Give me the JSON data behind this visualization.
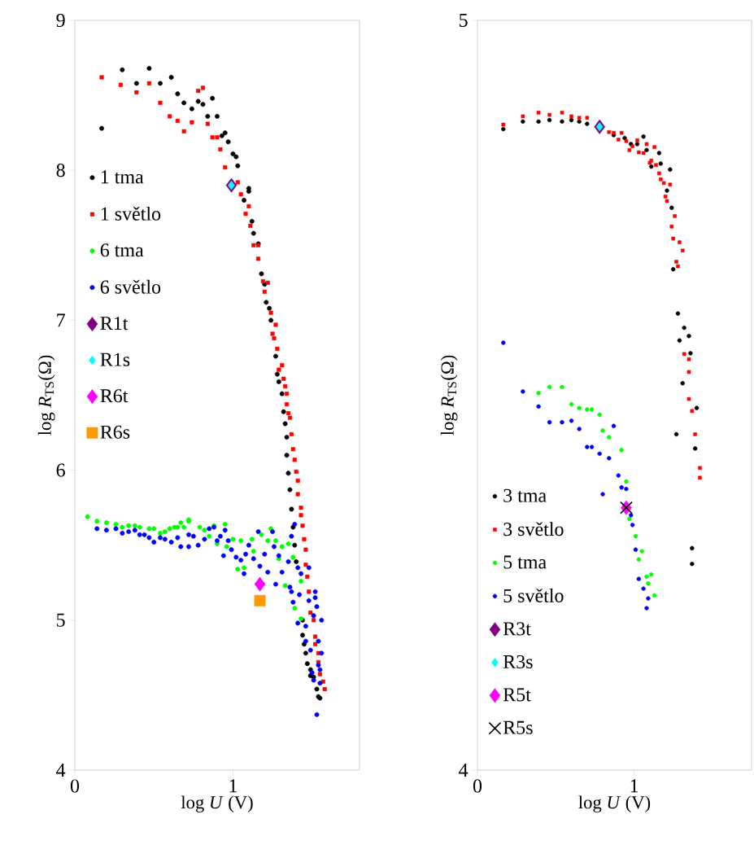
{
  "chart_data": [
    {
      "type": "scatter",
      "xlabel": "log *U* (V)",
      "ylabel": "log *R*$_{TS}$(Ω)",
      "xlim": [
        0,
        1.8
      ],
      "ylim": [
        4,
        9
      ],
      "xticks": [
        0,
        1
      ],
      "yticks": [
        4,
        5,
        6,
        7,
        8,
        9
      ],
      "grid": false,
      "legend": "left",
      "series": [
        {
          "name": "1 tma",
          "color": "#000000",
          "marker": "circle",
          "x": [
            0.17,
            0.3,
            0.39,
            0.47,
            0.54,
            0.61,
            0.65,
            0.69,
            0.74,
            0.78,
            0.81,
            0.87,
            0.84,
            0.9,
            0.93,
            0.95,
            0.97,
            1.0,
            1.02,
            1.03,
            1.1,
            1.1,
            1.07,
            1.12,
            1.13,
            1.16,
            1.18,
            1.2,
            1.21,
            1.23,
            1.24,
            1.27,
            1.28,
            1.29,
            1.31,
            1.32,
            1.33,
            1.34,
            1.34,
            1.35,
            1.36,
            1.37,
            1.38,
            1.39,
            1.4,
            1.44,
            1.44,
            1.45,
            1.46,
            1.47,
            1.49,
            1.49,
            1.51,
            1.53,
            1.54,
            1.55
          ],
          "values": [
            8.28,
            8.67,
            8.58,
            8.68,
            8.58,
            8.62,
            8.51,
            8.45,
            8.41,
            8.46,
            8.44,
            8.48,
            8.36,
            8.36,
            8.23,
            8.25,
            8.19,
            8.11,
            8.09,
            8.03,
            7.88,
            7.86,
            7.8,
            7.66,
            7.58,
            7.51,
            7.31,
            7.24,
            7.12,
            7.08,
            7.0,
            6.76,
            6.64,
            6.59,
            6.51,
            6.39,
            6.31,
            6.22,
            6.1,
            5.98,
            5.87,
            5.74,
            5.62,
            5.5,
            5.39,
            5.0,
            4.9,
            4.84,
            4.78,
            4.71,
            4.67,
            4.63,
            4.62,
            4.54,
            4.49,
            4.48
          ]
        },
        {
          "name": "1 světlo",
          "color": "#ff0000",
          "marker": "square",
          "x": [
            0.17,
            0.29,
            0.39,
            0.47,
            0.54,
            0.6,
            0.65,
            0.69,
            0.74,
            0.78,
            0.81,
            0.84,
            0.87,
            0.9,
            0.92,
            0.95,
            1.03,
            1.05,
            1.1,
            1.08,
            1.11,
            1.13,
            1.16,
            1.16,
            1.19,
            1.22,
            1.2,
            1.24,
            1.27,
            1.25,
            1.26,
            1.28,
            1.31,
            1.29,
            1.32,
            1.33,
            1.34,
            1.34,
            1.35,
            1.36,
            1.37,
            1.38,
            1.39,
            1.4,
            1.41,
            1.41,
            1.43,
            1.43,
            1.44,
            1.45,
            1.46,
            1.46,
            1.47,
            1.48,
            1.49,
            1.51,
            1.52,
            1.52,
            1.54,
            1.54,
            1.55,
            1.57,
            1.58
          ],
          "values": [
            8.62,
            8.57,
            8.52,
            8.58,
            8.45,
            8.36,
            8.33,
            8.26,
            8.32,
            8.53,
            8.55,
            8.31,
            8.22,
            8.22,
            8.14,
            8.02,
            7.92,
            7.84,
            7.76,
            7.71,
            7.63,
            7.5,
            7.5,
            7.41,
            7.26,
            7.25,
            7.19,
            7.05,
            6.97,
            6.91,
            6.88,
            6.81,
            6.7,
            6.67,
            6.61,
            6.56,
            6.51,
            6.44,
            6.38,
            6.35,
            6.24,
            6.14,
            6.07,
            5.99,
            5.93,
            5.84,
            5.75,
            5.7,
            5.63,
            5.54,
            5.47,
            5.37,
            5.29,
            5.19,
            5.05,
            5.0,
            4.89,
            4.84,
            4.78,
            4.72,
            4.64,
            4.59,
            4.54
          ]
        },
        {
          "name": "6 tma",
          "color": "#00ff00",
          "marker": "circle",
          "x": [
            0.08,
            0.14,
            0.2,
            0.26,
            0.3,
            0.34,
            0.38,
            0.41,
            0.47,
            0.5,
            0.54,
            0.57,
            0.6,
            0.63,
            0.65,
            0.67,
            0.69,
            0.72,
            0.72,
            0.79,
            0.82,
            0.88,
            0.85,
            0.9,
            0.95,
            0.96,
            1.0,
            1.05,
            1.03,
            1.07,
            1.12,
            1.13,
            1.18,
            1.24,
            1.22,
            1.27,
            1.31,
            1.29,
            1.33,
            1.35,
            1.38,
            1.43,
            1.39,
            1.43
          ],
          "values": [
            5.69,
            5.66,
            5.65,
            5.64,
            5.62,
            5.63,
            5.63,
            5.62,
            5.61,
            5.61,
            5.58,
            5.59,
            5.61,
            5.62,
            5.62,
            5.65,
            5.62,
            5.67,
            5.66,
            5.62,
            5.6,
            5.63,
            5.56,
            5.51,
            5.64,
            5.49,
            5.54,
            5.53,
            5.34,
            5.35,
            5.54,
            5.46,
            5.57,
            5.61,
            5.53,
            5.53,
            5.49,
            5.41,
            5.23,
            5.51,
            5.42,
            5.26,
            5.08,
            5.01
          ]
        },
        {
          "name": "6 světlo",
          "color": "#0000ff",
          "marker": "circle",
          "x": [
            0.14,
            0.2,
            0.26,
            0.3,
            0.34,
            0.38,
            0.41,
            0.44,
            0.47,
            0.5,
            0.54,
            0.57,
            0.61,
            0.65,
            0.67,
            0.72,
            0.72,
            0.75,
            0.78,
            0.82,
            0.85,
            0.88,
            0.9,
            0.92,
            0.94,
            0.95,
            0.97,
            0.99,
            1.02,
            1.05,
            1.08,
            1.07,
            1.1,
            1.13,
            1.16,
            1.17,
            1.2,
            1.22,
            1.25,
            1.26,
            1.27,
            1.29,
            1.31,
            1.35,
            1.36,
            1.39,
            1.37,
            1.37,
            1.41,
            1.42,
            1.43,
            1.38,
            1.41,
            1.48,
            1.46,
            1.48,
            1.52,
            1.52,
            1.53,
            1.51,
            1.56,
            1.46,
            1.49,
            1.54,
            1.56,
            1.54,
            1.55,
            1.5,
            1.51,
            1.55,
            1.53
          ],
          "values": [
            5.61,
            5.6,
            5.61,
            5.58,
            5.59,
            5.6,
            5.57,
            5.57,
            5.55,
            5.52,
            5.55,
            5.54,
            5.52,
            5.55,
            5.49,
            5.49,
            5.57,
            5.56,
            5.5,
            5.54,
            5.61,
            5.62,
            5.53,
            5.56,
            5.43,
            5.6,
            5.53,
            5.47,
            5.42,
            5.4,
            5.44,
            5.31,
            5.5,
            5.41,
            5.59,
            5.36,
            5.44,
            5.32,
            5.59,
            5.49,
            5.24,
            5.43,
            5.32,
            5.39,
            5.22,
            5.64,
            5.56,
            5.19,
            5.35,
            5.17,
            5.31,
            5.12,
            4.98,
            5.35,
            4.96,
            5.13,
            5.19,
            5.15,
            5.09,
            5.03,
            5.0,
            4.86,
            4.8,
            4.86,
            4.78,
            4.7,
            4.67,
            4.65,
            4.6,
            4.58,
            4.37
          ]
        },
        {
          "name": "R1t",
          "color": "#800080",
          "marker": "diamond",
          "x": [
            0.99
          ],
          "values": [
            7.9
          ]
        },
        {
          "name": "R1s",
          "color": "#00ffff",
          "marker": "diamond",
          "x": [
            0.99
          ],
          "values": [
            7.9
          ]
        },
        {
          "name": "R6t",
          "color": "#ff00ff",
          "marker": "diamond",
          "x": [
            1.17
          ],
          "values": [
            5.24
          ]
        },
        {
          "name": "R6s",
          "color": "#ff9900",
          "marker": "square",
          "x": [
            1.17
          ],
          "values": [
            5.13
          ]
        }
      ]
    },
    {
      "type": "scatter",
      "xlabel": "log *U* (V)",
      "ylabel": "log *R*$_{TS}$(Ω)",
      "xlim": [
        0,
        1.75
      ],
      "ylim": [
        4,
        5
      ],
      "xticks": [
        0,
        1
      ],
      "yticks": [
        4,
        5
      ],
      "grid": false,
      "legend": "bottom left",
      "series": [
        {
          "name": "3 tma",
          "color": "#000000",
          "marker": "circle",
          "x": [
            0.165,
            0.29,
            0.39,
            0.46,
            0.54,
            0.6,
            0.65,
            0.7,
            0.87,
            0.94,
            0.98,
            1.02,
            1.06,
            1.08,
            1.11,
            1.16,
            1.17,
            1.23,
            1.21,
            1.24,
            1.25,
            1.28,
            1.32,
            1.35,
            1.29,
            1.36,
            1.31,
            1.4,
            1.27,
            1.39,
            1.37,
            1.37
          ],
          "values": [
            4.855,
            4.865,
            4.865,
            4.867,
            4.865,
            4.867,
            4.865,
            4.862,
            4.847,
            4.843,
            4.835,
            4.835,
            4.845,
            4.827,
            4.805,
            4.823,
            4.809,
            4.801,
            4.773,
            4.75,
            4.668,
            4.609,
            4.59,
            4.579,
            4.573,
            4.556,
            4.516,
            4.483,
            4.448,
            4.429,
            4.296,
            4.275
          ]
        },
        {
          "name": "3 světlo",
          "color": "#ff0000",
          "marker": "square",
          "x": [
            0.165,
            0.29,
            0.39,
            0.46,
            0.54,
            0.6,
            0.65,
            0.7,
            0.84,
            0.87,
            0.9,
            0.92,
            0.95,
            0.97,
            0.99,
            1.02,
            1.03,
            1.06,
            1.08,
            1.11,
            1.1,
            1.13,
            1.14,
            1.16,
            1.17,
            1.19,
            1.23,
            1.2,
            1.21,
            1.26,
            1.24,
            1.25,
            1.29,
            1.31,
            1.27,
            1.28,
            1.32,
            1.35,
            1.35,
            1.35,
            1.37,
            1.39,
            1.42,
            1.42
          ],
          "values": [
            4.861,
            4.872,
            4.877,
            4.874,
            4.877,
            4.872,
            4.87,
            4.87,
            4.851,
            4.85,
            4.841,
            4.85,
            4.839,
            4.827,
            4.832,
            4.84,
            4.824,
            4.823,
            4.835,
            4.813,
            4.81,
            4.831,
            4.807,
            4.796,
            4.788,
            4.783,
            4.781,
            4.765,
            4.759,
            4.739,
            4.725,
            4.709,
            4.704,
            4.693,
            4.678,
            4.672,
            4.555,
            4.548,
            4.531,
            4.495,
            4.479,
            4.448,
            4.403,
            4.39
          ]
        },
        {
          "name": "5 tma",
          "color": "#00ff00",
          "marker": "circle",
          "x": [
            0.39,
            0.46,
            0.54,
            0.6,
            0.65,
            0.7,
            0.73,
            0.78,
            0.8,
            0.84,
            0.92,
            0.95,
            0.97,
            1.01,
            1.05,
            1.03,
            1.11,
            1.08,
            1.09,
            1.13
          ],
          "values": [
            4.503,
            4.511,
            4.511,
            4.488,
            4.483,
            4.481,
            4.481,
            4.474,
            4.453,
            4.444,
            4.427,
            4.385,
            4.335,
            4.312,
            4.292,
            4.281,
            4.261,
            4.258,
            4.249,
            4.233
          ]
        },
        {
          "name": "5 světlo",
          "color": "#0000ff",
          "marker": "circle",
          "x": [
            0.165,
            0.29,
            0.39,
            0.46,
            0.54,
            0.6,
            0.65,
            0.87,
            0.7,
            0.73,
            0.78,
            0.84,
            0.9,
            0.92,
            0.95,
            0.8,
            0.98,
            0.99,
            1.01,
            1.03,
            1.06,
            1.09,
            1.08
          ],
          "values": [
            4.57,
            4.505,
            4.485,
            4.464,
            4.464,
            4.466,
            4.455,
            4.459,
            4.431,
            4.431,
            4.422,
            4.416,
            4.393,
            4.377,
            4.375,
            4.368,
            4.34,
            4.327,
            4.294,
            4.255,
            4.242,
            4.229,
            4.216
          ]
        },
        {
          "name": "R3t",
          "color": "#800080",
          "marker": "diamond",
          "x": [
            0.78
          ],
          "values": [
            4.858
          ]
        },
        {
          "name": "R3s",
          "color": "#00ffff",
          "marker": "diamond",
          "x": [
            0.78
          ],
          "values": [
            4.858
          ]
        },
        {
          "name": "R5t",
          "color": "#ff00ff",
          "marker": "diamond",
          "x": [
            0.95
          ],
          "values": [
            4.35
          ]
        },
        {
          "name": "R5s",
          "color": "#000000",
          "marker": "cross",
          "x": [
            0.95
          ],
          "values": [
            4.35
          ]
        }
      ]
    }
  ]
}
